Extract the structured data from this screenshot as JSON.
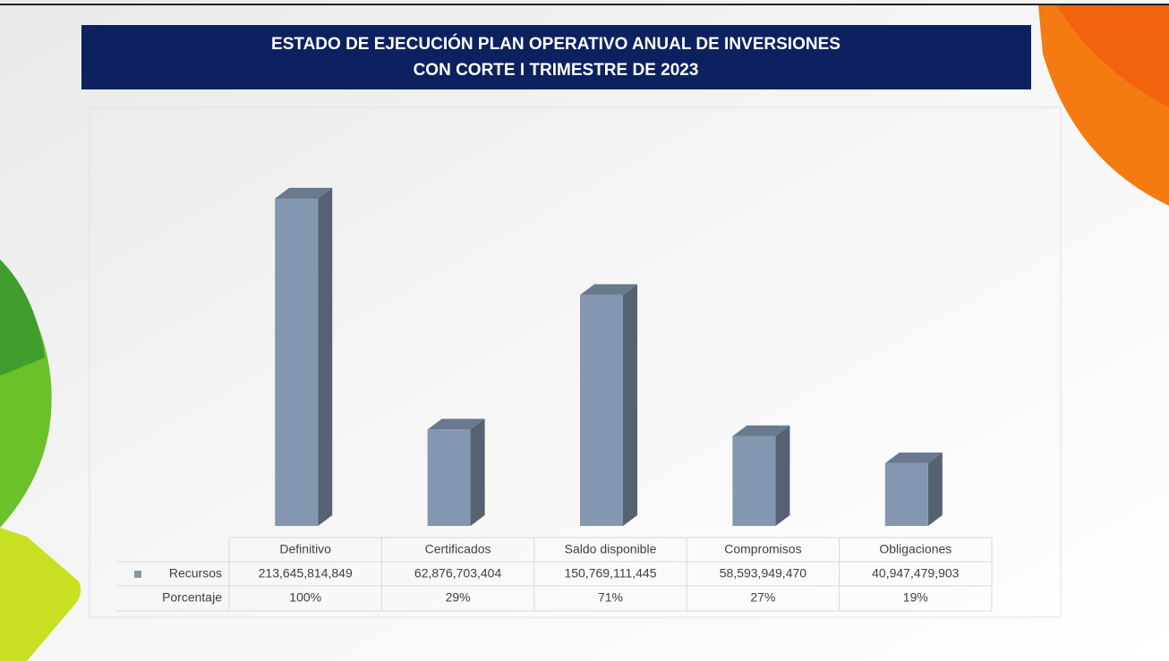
{
  "chart_data": {
    "type": "bar3d",
    "title": [
      "ESTADO DE EJECUCIÓN PLAN OPERATIVO ANUAL DE INVERSIONES",
      "CON CORTE I TRIMESTRE DE 2023"
    ],
    "categories": [
      "Definitivo",
      "Certificados",
      "Saldo disponible",
      "Compromisos",
      "Obligaciones"
    ],
    "series": [
      {
        "name": "Recursos",
        "color": "#8497b0",
        "values": [
          213645814849,
          62876703404,
          150769111445,
          58593949470,
          40947479903
        ],
        "value_labels": [
          "213,645,814,849",
          "62,876,703,404",
          "150,769,111,445",
          "58,593,949,470",
          "40,947,479,903"
        ]
      },
      {
        "name": "Porcentaje",
        "values": [
          100,
          29,
          71,
          27,
          19
        ],
        "value_labels": [
          "100%",
          "29%",
          "71%",
          "27%",
          "19%"
        ]
      }
    ]
  }
}
